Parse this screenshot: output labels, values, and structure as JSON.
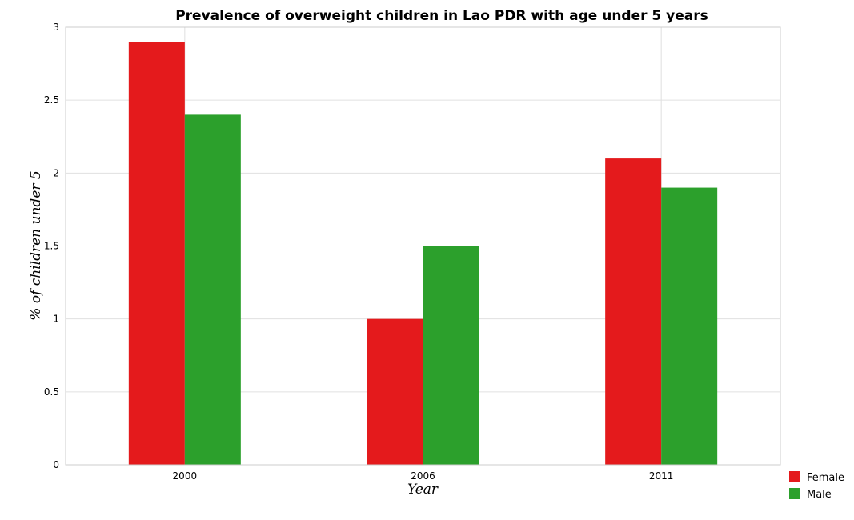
{
  "chart_data": {
    "type": "bar",
    "title": "Prevalence of overweight children in Lao PDR with age under 5 years",
    "xlabel": "Year",
    "ylabel": "% of children under 5",
    "categories": [
      "2000",
      "2006",
      "2011"
    ],
    "series": [
      {
        "name": "Female",
        "color": "#e41a1c",
        "values": [
          2.9,
          1.0,
          2.1
        ]
      },
      {
        "name": "Male",
        "color": "#2ca02c",
        "values": [
          2.4,
          1.5,
          1.9
        ]
      }
    ],
    "ylim": [
      0,
      3
    ],
    "yticks": [
      "0",
      "0.5",
      "1",
      "1.5",
      "2",
      "2.5",
      "3"
    ],
    "grid": true,
    "legend_position": "bottom-right"
  }
}
